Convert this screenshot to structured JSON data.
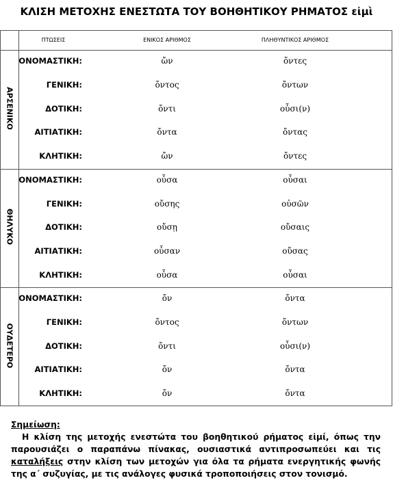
{
  "header": {
    "title": "ΚΛΙΣΗ ΜΕΤΟΧΗΣ ΕΝΕΣΤΩΤΑ ΤΟΥ ΒΟΗΘΗΤΙΚΟΥ ΡΗΜΑΤΟΣ εἰμὶ"
  },
  "table": {
    "columns": [
      "ΠΤΩΣΕΙΣ",
      "ΕΝΙΚΟΣ ΑΡΙΘΜΟΣ",
      "ΠΛΗΘΥΝΤΙΚΟΣ ΑΡΙΘΜΟΣ"
    ],
    "groups": [
      {
        "label": "ΑΡΣΕΝΙΚΟ",
        "rows": [
          [
            "ΟΝΟΜΑΣΤΙΚΗ:",
            "ὤν",
            "ὄντες"
          ],
          [
            "ΓΕΝΙΚΗ:",
            "ὄντος",
            "ὄντων"
          ],
          [
            "ΔΟΤΙΚΗ:",
            "ὄντι",
            "οὖσι(ν)"
          ],
          [
            "ΑΙΤΙΑΤΙΚΗ:",
            "ὄντα",
            "ὄντας"
          ],
          [
            "ΚΛΗΤΙΚΗ:",
            "ὤν",
            "ὄντες"
          ]
        ]
      },
      {
        "label": "ΘΗΛΥΚΟ",
        "rows": [
          [
            "ΟΝΟΜΑΣΤΙΚΗ:",
            "οὖσα",
            "οὖσαι"
          ],
          [
            "ΓΕΝΙΚΗ:",
            "οὔσης",
            "οὐσῶν"
          ],
          [
            "ΔΟΤΙΚΗ:",
            "οὔσῃ",
            "οὔσαις"
          ],
          [
            "ΑΙΤΙΑΤΙΚΗ:",
            "οὖσαν",
            "οὔσας"
          ],
          [
            "ΚΛΗΤΙΚΗ:",
            "οὖσα",
            "οὖσαι"
          ]
        ]
      },
      {
        "label": "ΟΥΔΕΤΕΡΟ",
        "rows": [
          [
            "ΟΝΟΜΑΣΤΙΚΗ:",
            "ὄν",
            "ὄντα"
          ],
          [
            "ΓΕΝΙΚΗ:",
            "ὄντος",
            "ὄντων"
          ],
          [
            "ΔΟΤΙΚΗ:",
            "ὄντι",
            "οὖσι(ν)"
          ],
          [
            "ΑΙΤΙΑΤΙΚΗ:",
            "ὄν",
            "ὄντα"
          ],
          [
            "ΚΛΗΤΙΚΗ:",
            "ὄν",
            "ὄντα"
          ]
        ]
      }
    ]
  },
  "note": {
    "heading": "Σημείωση:",
    "parts": [
      "Η κλίση της μετοχής ενεστώτα του βοηθητικού ρήματος εἰμί, όπως την παρουσιάζει ο παραπάνω πίνακας, ουσιαστικά αντιπροσωπεύει και τις ",
      "καταλήξεις",
      " στην κλίση των μετοχών για όλα τα ρήματα ενεργητικής φωνής της α΄ συζυγίας, με τις ανάλογες φυσικά τροποποιήσεις στον τονισμό."
    ]
  }
}
